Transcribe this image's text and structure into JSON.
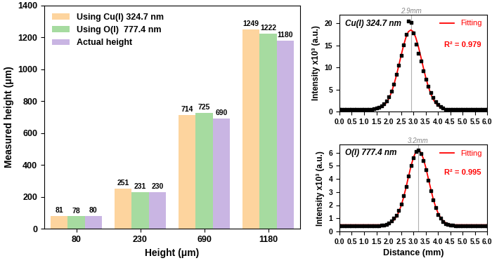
{
  "chart_data": [
    {
      "type": "bar",
      "categories": [
        "80",
        "230",
        "690",
        "1180"
      ],
      "x_label": "Height (μm)",
      "y_label": "Measured height (μm)",
      "series": [
        {
          "name": "Using Cu(I) 324.7 nm",
          "color": "#fdd49e",
          "values": [
            81,
            251,
            714,
            1249
          ]
        },
        {
          "name": "Using O(I)  777.4 nm",
          "color": "#a6dba0",
          "values": [
            78,
            231,
            725,
            1222
          ]
        },
        {
          "name": "Actual height",
          "color": "#c9b5e3",
          "values": [
            80,
            230,
            690,
            1180
          ]
        }
      ],
      "ylim": [
        0,
        1400
      ],
      "yticks": [
        0,
        200,
        400,
        600,
        800,
        1000,
        1200,
        1400
      ],
      "legend": "upper left",
      "data_labels": true
    },
    {
      "type": "line",
      "title": "Cu(I) 324.7 nm",
      "y_label": "Intensity x10³ (a.u.)",
      "annotations": [
        "R² = 0.979"
      ],
      "vline": {
        "value": 2.9,
        "label": "2.9mm"
      },
      "x": [
        0.0,
        0.1,
        0.2,
        0.3,
        0.4,
        0.5,
        0.6,
        0.7,
        0.8,
        0.9,
        1.0,
        1.1,
        1.2,
        1.3,
        1.4,
        1.5,
        1.6,
        1.7,
        1.8,
        1.9,
        2.0,
        2.1,
        2.2,
        2.3,
        2.4,
        2.5,
        2.6,
        2.7,
        2.8,
        2.9,
        3.0,
        3.1,
        3.2,
        3.3,
        3.4,
        3.5,
        3.6,
        3.7,
        3.8,
        3.9,
        4.0,
        4.1,
        4.2,
        4.3,
        4.4,
        4.5,
        4.6,
        4.7,
        4.8,
        4.9,
        5.0,
        5.1,
        5.2,
        5.3,
        5.4,
        5.5,
        5.6,
        5.7,
        5.8,
        5.9,
        6.0
      ],
      "series": [
        {
          "type": "scatter",
          "color": "#000000",
          "marker": "square",
          "values": [
            0.5,
            0.5,
            0.5,
            0.5,
            0.5,
            0.5,
            0.5,
            0.5,
            0.5,
            0.5,
            0.5,
            0.5,
            0.5,
            0.6,
            0.7,
            0.8,
            1.0,
            1.3,
            1.8,
            2.5,
            3.4,
            4.6,
            6.3,
            8.5,
            10.5,
            12.8,
            15.2,
            17.5,
            20.5,
            20.2,
            17.8,
            15.3,
            13.2,
            11.5,
            9.3,
            7.4,
            5.8,
            4.3,
            3.2,
            2.3,
            1.6,
            1.1,
            0.8,
            0.6,
            0.5,
            0.5,
            0.5,
            0.5,
            0.5,
            0.5,
            0.5,
            0.5,
            0.5,
            0.5,
            0.5,
            0.5,
            0.5,
            0.5,
            0.5,
            0.5,
            0.5
          ]
        },
        {
          "name": "Fitting",
          "type": "line",
          "color": "#ff0000",
          "line_style": "solid",
          "values": [
            0.5,
            0.5,
            0.5,
            0.5,
            0.5,
            0.5,
            0.5,
            0.5,
            0.5,
            0.5,
            0.5,
            0.5,
            0.5,
            0.5,
            0.6,
            0.6,
            0.8,
            1.0,
            1.4,
            2.0,
            2.9,
            4.2,
            5.9,
            7.9,
            10.2,
            12.6,
            14.9,
            16.8,
            18.1,
            18.5,
            18.1,
            16.8,
            14.9,
            12.6,
            10.2,
            7.9,
            5.9,
            4.2,
            2.9,
            2.0,
            1.4,
            1.0,
            0.8,
            0.6,
            0.6,
            0.5,
            0.5,
            0.5,
            0.5,
            0.5,
            0.5,
            0.5,
            0.5,
            0.5,
            0.5,
            0.5,
            0.5,
            0.5,
            0.5,
            0.5,
            0.5
          ]
        }
      ],
      "xlim": [
        0.0,
        6.0
      ],
      "xticks": [
        0.0,
        0.5,
        1.0,
        1.5,
        2.0,
        2.5,
        3.0,
        3.5,
        4.0,
        4.5,
        5.0,
        5.5,
        6.0
      ],
      "ylim": [
        0,
        22
      ],
      "yticks": [
        0,
        5,
        10,
        15,
        20
      ],
      "legend": "upper right"
    },
    {
      "type": "line",
      "title": "O(I) 777.4 nm",
      "x_label": "Distance (mm)",
      "y_label": "Intensity x10³ (a.u.)",
      "annotations": [
        "R² = 0.995"
      ],
      "vline": {
        "value": 3.2,
        "label": "3.2mm"
      },
      "x": [
        0.0,
        0.1,
        0.2,
        0.3,
        0.4,
        0.5,
        0.6,
        0.7,
        0.8,
        0.9,
        1.0,
        1.1,
        1.2,
        1.3,
        1.4,
        1.5,
        1.6,
        1.7,
        1.8,
        1.9,
        2.0,
        2.1,
        2.2,
        2.3,
        2.4,
        2.5,
        2.6,
        2.7,
        2.8,
        2.9,
        3.0,
        3.1,
        3.2,
        3.3,
        3.4,
        3.5,
        3.6,
        3.7,
        3.8,
        3.9,
        4.0,
        4.1,
        4.2,
        4.3,
        4.4,
        4.5,
        4.6,
        4.7,
        4.8,
        4.9,
        5.0,
        5.1,
        5.2,
        5.3,
        5.4,
        5.5,
        5.6,
        5.7,
        5.8,
        5.9,
        6.0
      ],
      "series": [
        {
          "type": "scatter",
          "color": "#000000",
          "marker": "square",
          "values": [
            0.45,
            0.45,
            0.45,
            0.45,
            0.45,
            0.45,
            0.45,
            0.45,
            0.45,
            0.45,
            0.45,
            0.45,
            0.45,
            0.45,
            0.45,
            0.45,
            0.45,
            0.5,
            0.5,
            0.55,
            0.65,
            0.8,
            1.0,
            1.25,
            1.6,
            2.1,
            2.7,
            3.4,
            4.2,
            5.0,
            5.6,
            6.1,
            6.2,
            5.9,
            5.4,
            4.7,
            3.9,
            3.1,
            2.4,
            1.8,
            1.3,
            1.0,
            0.75,
            0.6,
            0.55,
            0.5,
            0.5,
            0.45,
            0.45,
            0.45,
            0.45,
            0.45,
            0.45,
            0.45,
            0.45,
            0.45,
            0.45,
            0.45,
            0.45,
            0.45,
            0.45
          ]
        },
        {
          "name": "Fitting",
          "type": "line",
          "color": "#ff0000",
          "line_style": "solid",
          "values": [
            0.5,
            0.5,
            0.5,
            0.5,
            0.5,
            0.5,
            0.5,
            0.5,
            0.5,
            0.5,
            0.5,
            0.5,
            0.5,
            0.5,
            0.5,
            0.5,
            0.5,
            0.5,
            0.5,
            0.55,
            0.6,
            0.68,
            0.84,
            1.08,
            1.43,
            1.92,
            2.55,
            3.31,
            4.12,
            4.92,
            5.59,
            6.04,
            6.2,
            6.04,
            5.59,
            4.92,
            4.12,
            3.31,
            2.55,
            1.92,
            1.43,
            1.08,
            0.84,
            0.68,
            0.6,
            0.55,
            0.5,
            0.5,
            0.5,
            0.5,
            0.5,
            0.5,
            0.5,
            0.5,
            0.5,
            0.5,
            0.5,
            0.5,
            0.5,
            0.5,
            0.5
          ]
        }
      ],
      "xlim": [
        0.0,
        6.0
      ],
      "xticks": [
        0.0,
        0.5,
        1.0,
        1.5,
        2.0,
        2.5,
        3.0,
        3.5,
        4.0,
        4.5,
        5.0,
        5.5,
        6.0
      ],
      "ylim": [
        0,
        6.6
      ],
      "yticks": [
        0,
        1,
        2,
        3,
        4,
        5,
        6
      ],
      "legend": "upper right"
    }
  ]
}
